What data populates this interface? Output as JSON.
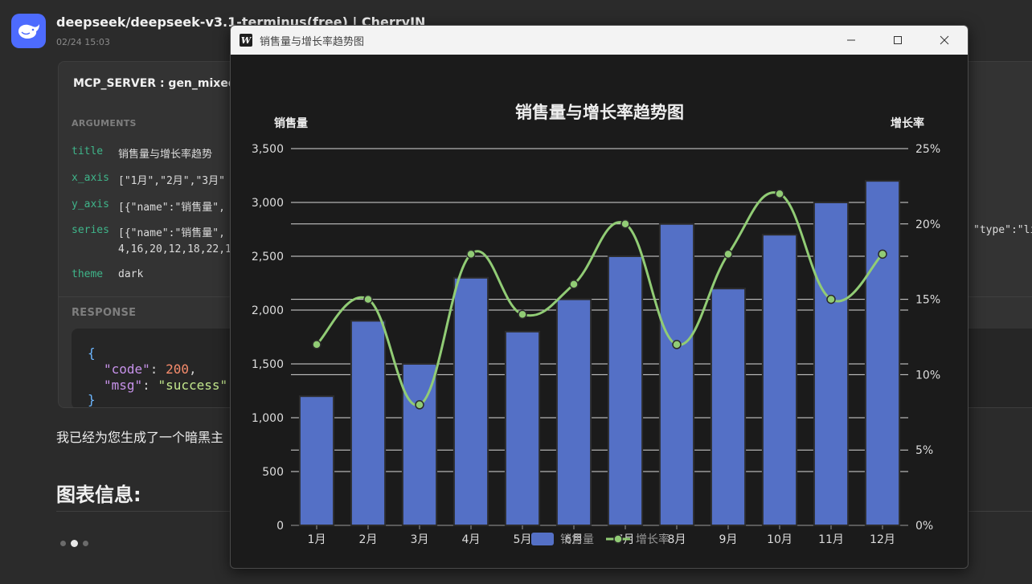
{
  "chat": {
    "title": "deepseek/deepseek-v3.1-terminus(free) | CherryIN",
    "time": "02/24 15:03",
    "tool_header": "MCP_SERVER : gen_mixed",
    "arguments_label": "ARGUMENTS",
    "args": [
      {
        "key": "title",
        "value": "销售量与增长率趋势"
      },
      {
        "key": "x_axis",
        "value": "[\"1月\",\"2月\",\"3月\""
      },
      {
        "key": "y_axis",
        "value": "[{\"name\":\"销售量\","
      },
      {
        "key": "series",
        "value": "[{\"name\":\"销售量\","
      },
      {
        "key": "theme",
        "value": "dark"
      }
    ],
    "series_cont": "4,16,20,12,18,22,1",
    "series_tail": "\"type\":\"li",
    "response_label": "RESPONSE",
    "response": {
      "brace_open": "{",
      "code_key": "\"code\"",
      "code_val": "200",
      "msg_key": "\"msg\"",
      "msg_val": "\"success\"",
      "brace_close": "}"
    },
    "message": "我已经为您生成了一个暗黑主",
    "heading": "图表信息:"
  },
  "window": {
    "icon_letter": "W",
    "title": "销售量与增长率趋势图"
  },
  "chart_data": {
    "type": "bar",
    "title": "销售量与增长率趋势图",
    "categories": [
      "1月",
      "2月",
      "3月",
      "4月",
      "5月",
      "6月",
      "7月",
      "8月",
      "9月",
      "10月",
      "11月",
      "12月"
    ],
    "series": [
      {
        "name": "销售量",
        "type": "bar",
        "axis": "left",
        "values": [
          1200,
          1900,
          1500,
          2300,
          1800,
          2100,
          2500,
          2800,
          2200,
          2700,
          3000,
          3200
        ],
        "color": "#5470c6"
      },
      {
        "name": "增长率",
        "type": "line",
        "axis": "right",
        "values": [
          12,
          15,
          8,
          18,
          14,
          16,
          20,
          12,
          18,
          22,
          15,
          18
        ],
        "color": "#91cc75"
      }
    ],
    "y_left": {
      "name": "销售量",
      "min": 0,
      "max": 3500,
      "ticks": [
        "0",
        "500",
        "1,000",
        "1,500",
        "2,000",
        "2,500",
        "3,000",
        "3,500"
      ]
    },
    "y_right": {
      "name": "增长率",
      "min": 0,
      "max": 25,
      "ticks": [
        "0%",
        "5%",
        "10%",
        "15%",
        "20%",
        "25%"
      ]
    },
    "legend_position": "bottom-center",
    "theme": "dark"
  }
}
